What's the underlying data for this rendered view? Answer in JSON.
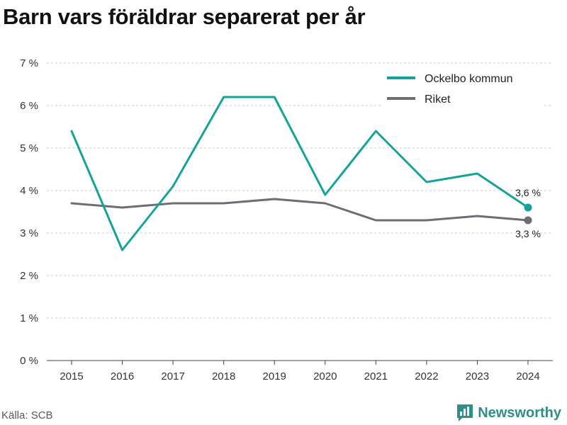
{
  "title": "Barn vars föräldrar separerat per år",
  "source": "Källa: SCB",
  "brand": {
    "name": "Newsworthy",
    "icon": "newsworthy-logo-icon",
    "color": "#2f8d8a"
  },
  "chart_data": {
    "type": "line",
    "title": "Barn vars föräldrar separerat per år",
    "xlabel": "",
    "ylabel": "",
    "x": [
      "2015",
      "2016",
      "2017",
      "2018",
      "2019",
      "2020",
      "2021",
      "2022",
      "2023",
      "2024"
    ],
    "ylim": [
      0,
      7
    ],
    "y_ticks": [
      0,
      1,
      2,
      3,
      4,
      5,
      6,
      7
    ],
    "y_tick_labels": [
      "0 %",
      "1 %",
      "2 %",
      "3 %",
      "4 %",
      "5 %",
      "6 %",
      "7 %"
    ],
    "grid": "horizontal-dashed",
    "legend_position": "top-right",
    "series": [
      {
        "name": "Ockelbo kommun",
        "color": "#13a39a",
        "values": [
          5.4,
          2.6,
          4.1,
          6.2,
          6.2,
          3.9,
          5.4,
          4.2,
          4.4,
          3.6
        ],
        "end_label": "3,6 %"
      },
      {
        "name": "Riket",
        "color": "#6d6d75",
        "values": [
          3.7,
          3.6,
          3.7,
          3.7,
          3.8,
          3.7,
          3.3,
          3.3,
          3.4,
          3.3
        ],
        "end_label": "3,3 %"
      }
    ]
  }
}
